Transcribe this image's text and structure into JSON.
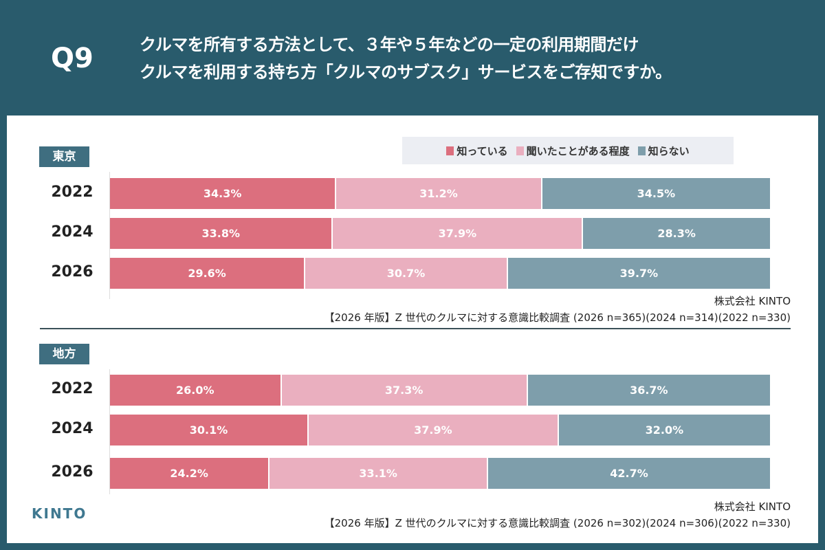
{
  "header": {
    "q": "Q9",
    "title_line1": "クルマを所有する方法として、３年や５年などの一定の利用期間だけ",
    "title_line2": "クルマを利用する持ち方「クルマのサブスク」サービスをご存知ですか。"
  },
  "colors": {
    "know": "#dc6f7e",
    "heard": "#eaafbf",
    "dont": "#7e9eab",
    "background": "#295b6c"
  },
  "legend": [
    "知っている",
    "聞いたことがある程度",
    "知らない"
  ],
  "chart_data": [
    {
      "type": "bar",
      "stacked": true,
      "orientation": "horizontal",
      "title": "東京",
      "categories": [
        "2022",
        "2024",
        "2026"
      ],
      "series": [
        {
          "name": "知っている",
          "values": [
            34.3,
            33.8,
            29.6
          ]
        },
        {
          "name": "聞いたことがある程度",
          "values": [
            31.2,
            37.9,
            30.7
          ]
        },
        {
          "name": "知らない",
          "values": [
            34.5,
            28.3,
            39.7
          ]
        }
      ],
      "source_company": "株式会社 KINTO",
      "source": "【2026 年版】Z 世代のクルマに対する意識比較調査 (2026 n=365)(2024 n=314)(2022 n=330)"
    },
    {
      "type": "bar",
      "stacked": true,
      "orientation": "horizontal",
      "title": "地方",
      "categories": [
        "2022",
        "2024",
        "2026"
      ],
      "series": [
        {
          "name": "知っている",
          "values": [
            26.0,
            30.1,
            24.2
          ]
        },
        {
          "name": "聞いたことがある程度",
          "values": [
            37.3,
            37.9,
            33.1
          ]
        },
        {
          "name": "知らない",
          "values": [
            36.7,
            32.0,
            42.7
          ]
        }
      ],
      "source_company": "株式会社 KINTO",
      "source": "【2026 年版】Z 世代のクルマに対する意識比較調査 (2026 n=302)(2024 n=306)(2022 n=330)"
    }
  ],
  "logo": "KINTO"
}
